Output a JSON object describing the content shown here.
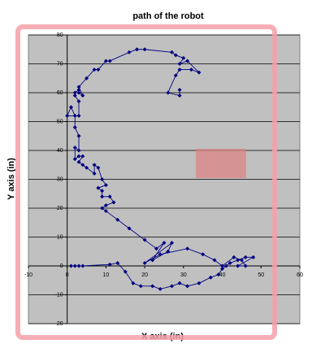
{
  "chart_data": {
    "type": "scatter-line",
    "title": "path of the robot",
    "x_label": "X axis (in)",
    "y_label": "Y axis (in)",
    "x": [
      1,
      2,
      3,
      4,
      11,
      13,
      15,
      17,
      19,
      22,
      24,
      27,
      29,
      31,
      34,
      37,
      39,
      40,
      41,
      42,
      44,
      46,
      48,
      44,
      46,
      45,
      43,
      40,
      38,
      35,
      31,
      24,
      20,
      27,
      26,
      22,
      25,
      23,
      20,
      16,
      13,
      10,
      9,
      10,
      12,
      11,
      9,
      9,
      8,
      10,
      9,
      8,
      7,
      7,
      5,
      4,
      3,
      4,
      3,
      2,
      2,
      3,
      3,
      2,
      2,
      1,
      0,
      3,
      3,
      2,
      2,
      3,
      3,
      4,
      3,
      5,
      7,
      8,
      10,
      11,
      16,
      18,
      20,
      27,
      28,
      30,
      29,
      31,
      34,
      32,
      29,
      28,
      26,
      29,
      29
    ],
    "values": [
      0,
      0,
      0,
      0,
      0.5,
      1,
      -2,
      -6,
      -7,
      -7,
      -8,
      -7,
      -6,
      -7,
      -6,
      -4,
      -3,
      -1,
      0,
      1,
      2,
      3,
      3,
      0,
      0,
      2,
      3,
      0,
      2,
      4,
      6,
      4,
      1,
      8,
      5,
      2,
      8,
      6,
      9,
      13,
      16,
      19,
      20,
      21,
      22,
      24,
      24,
      26,
      27,
      28,
      30,
      34,
      35,
      32,
      34,
      35,
      36,
      38,
      38,
      37,
      41,
      40,
      45,
      48,
      52,
      55,
      52,
      52,
      57,
      59,
      60,
      61,
      60,
      59,
      62,
      65,
      68,
      68,
      71,
      71,
      74,
      75,
      75,
      74,
      73,
      72,
      70,
      71,
      67,
      68,
      68,
      66,
      60,
      59,
      61
    ],
    "color": "#000080",
    "xlim": [
      -10,
      60
    ],
    "xticks": [
      -10,
      0,
      10,
      20,
      30,
      40,
      50,
      60
    ],
    "ylim": [
      -20,
      80
    ],
    "yticks": [
      -20,
      -10,
      0,
      10,
      20,
      30,
      40,
      50,
      60,
      70,
      80
    ],
    "grid": true
  }
}
